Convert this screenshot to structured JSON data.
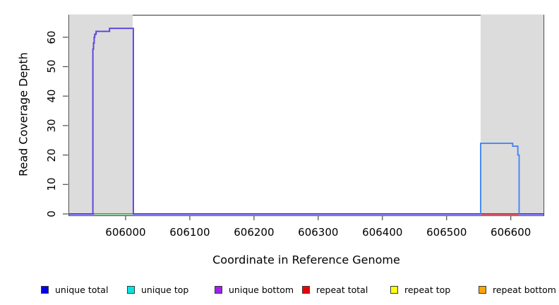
{
  "chart_data": {
    "type": "line",
    "title": "",
    "xlabel": "Coordinate in Reference Genome",
    "ylabel": "Read Coverage Depth",
    "xlim": [
      605911,
      606652
    ],
    "ylim": [
      0,
      67.6
    ],
    "x_ticks": [
      606000,
      606100,
      606200,
      606300,
      606400,
      606500,
      606600
    ],
    "y_ticks": [
      0,
      10,
      20,
      30,
      40,
      50,
      60
    ],
    "grid": false,
    "plot_border_color": "#4c4c4c",
    "highlight_regions": [
      {
        "name": "left-repeat-region",
        "start": 605912,
        "end": 606011,
        "color": "#dcdcdc"
      },
      {
        "name": "right-repeat-region",
        "start": 606553,
        "end": 606651,
        "color": "#dcdcdc"
      }
    ],
    "series": [
      {
        "name": "unique total",
        "color": "#0000EE",
        "visible_segments": [
          {
            "x": [
              605911,
              606553
            ],
            "y": 0
          },
          {
            "x": [
              606553,
              606603
            ],
            "y": 24
          },
          {
            "x": [
              606603,
              606611
            ],
            "y": 23
          },
          {
            "x": [
              606611,
              606613
            ],
            "y": 20
          },
          {
            "x": [
              606613,
              606652
            ],
            "y": 0
          }
        ]
      },
      {
        "name": "unique top",
        "color": "#00E6E6",
        "visible_segments": [
          {
            "x": [
              605951,
              606012
            ],
            "y": 0
          }
        ]
      },
      {
        "name": "unique bottom",
        "color": "#A020F0",
        "visible_segments": [
          {
            "x": [
              605949,
              605950
            ],
            "y": 56
          },
          {
            "x": [
              605950,
              605951
            ],
            "y": 58
          },
          {
            "x": [
              605951,
              605952
            ],
            "y": 60
          },
          {
            "x": [
              605952,
              605954
            ],
            "y": 61
          },
          {
            "x": [
              605954,
              605975
            ],
            "y": 62
          },
          {
            "x": [
              605975,
              606012
            ],
            "y": 63
          }
        ]
      },
      {
        "name": "repeat total",
        "color": "#EE0000",
        "visible_segments": [
          {
            "x": [
              606554,
              606613
            ],
            "y": 0
          }
        ]
      },
      {
        "name": "repeat top",
        "color": "#FFFF00",
        "visible_segments": []
      },
      {
        "name": "repeat bottom",
        "color": "#FFA500",
        "visible_segments": []
      }
    ],
    "render_layers": [
      {
        "name": "baseline-purple-underlay",
        "color": "#b4a4ec",
        "width": 2.6,
        "dy": 0.9,
        "points": [
          [
            605912,
            0
          ],
          [
            606651,
            0
          ]
        ]
      },
      {
        "name": "baseline-unique-total",
        "color": "#3d3deb",
        "width": 1.7,
        "dy": -0.1,
        "points": [
          [
            605912,
            0
          ],
          [
            606651,
            0
          ]
        ]
      },
      {
        "name": "zero-line-unique-top-green",
        "color": "#8fd88f",
        "width": 1.7,
        "dy": 0.5,
        "points": [
          [
            605951,
            0
          ],
          [
            606011,
            0
          ]
        ]
      },
      {
        "name": "zero-line-repeat-total-red",
        "color": "#e62e2e",
        "width": 1.7,
        "dy": 0.4,
        "points": [
          [
            606554,
            0
          ],
          [
            606613,
            0
          ]
        ]
      },
      {
        "name": "left-peak-unique-bottom",
        "color": "#5b40dd",
        "width": 1.9,
        "dy": 0,
        "points": [
          [
            605949,
            0
          ],
          [
            605949,
            56
          ],
          [
            605950,
            56
          ],
          [
            605950,
            58
          ],
          [
            605951,
            58
          ],
          [
            605951,
            60
          ],
          [
            605952,
            60
          ],
          [
            605952,
            61
          ],
          [
            605954,
            61
          ],
          [
            605954,
            62
          ],
          [
            605975,
            62
          ],
          [
            605975,
            63
          ],
          [
            606012,
            63
          ],
          [
            606012,
            0
          ]
        ]
      },
      {
        "name": "right-peak-unique-total",
        "color": "#4486f2",
        "width": 1.9,
        "dy": 0,
        "points": [
          [
            606553,
            0
          ],
          [
            606553,
            24
          ],
          [
            606603,
            24
          ],
          [
            606603,
            23
          ],
          [
            606611,
            23
          ],
          [
            606611,
            20
          ],
          [
            606613,
            20
          ],
          [
            606613,
            0
          ]
        ]
      }
    ],
    "legend": {
      "position": "bottom",
      "entries": [
        {
          "label": "unique total",
          "color": "#0000EE"
        },
        {
          "label": "unique top",
          "color": "#00E6E6"
        },
        {
          "label": "unique bottom",
          "color": "#A020F0"
        },
        {
          "label": "repeat total",
          "color": "#EE0000"
        },
        {
          "label": "repeat top",
          "color": "#FFFF00"
        },
        {
          "label": "repeat bottom",
          "color": "#FFA500"
        }
      ]
    }
  }
}
